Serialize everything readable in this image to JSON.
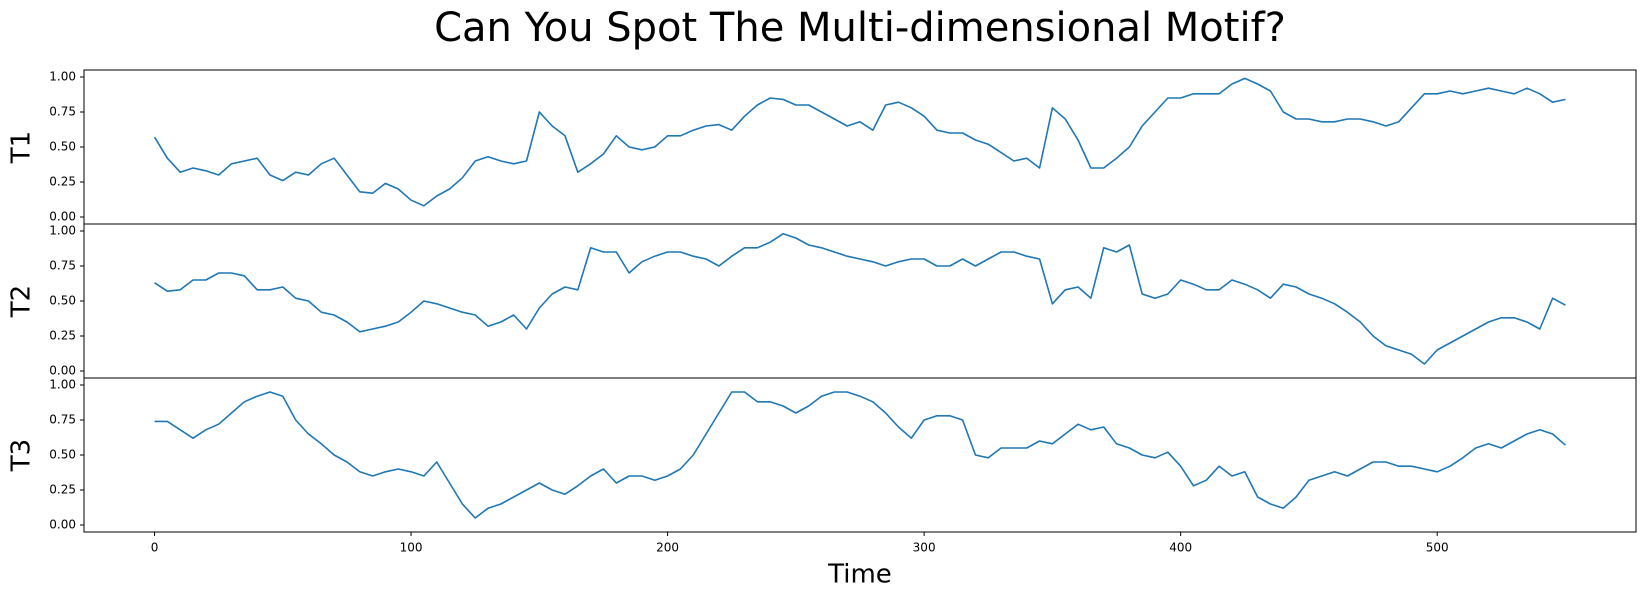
{
  "chart_data": {
    "type": "line",
    "title": "Can You Spot The Multi-dimensional Motif?",
    "xlabel": "Time",
    "color": "#1f77b4",
    "x": [
      0,
      5,
      10,
      15,
      20,
      25,
      30,
      35,
      40,
      45,
      50,
      55,
      60,
      65,
      70,
      75,
      80,
      85,
      90,
      95,
      100,
      105,
      110,
      115,
      120,
      125,
      130,
      135,
      140,
      145,
      150,
      155,
      160,
      165,
      170,
      175,
      180,
      185,
      190,
      195,
      200,
      205,
      210,
      215,
      220,
      225,
      230,
      235,
      240,
      245,
      250,
      255,
      260,
      265,
      270,
      275,
      280,
      285,
      290,
      295,
      300,
      305,
      310,
      315,
      320,
      325,
      330,
      335,
      340,
      345,
      350,
      355,
      360,
      365,
      370,
      375,
      380,
      385,
      390,
      395,
      400,
      405,
      410,
      415,
      420,
      425,
      430,
      435,
      440,
      445,
      450,
      455,
      460,
      465,
      470,
      475,
      480,
      485,
      490,
      495,
      500,
      505,
      510,
      515,
      520,
      525,
      530,
      535,
      540,
      545,
      550
    ],
    "xlim": [
      -27.5,
      577.5
    ],
    "xticks": [
      0,
      100,
      200,
      300,
      400,
      500
    ],
    "ylim": [
      -0.05,
      1.05
    ],
    "yticks": [
      {
        "value": 0,
        "label": "0.00"
      },
      {
        "value": 0.25,
        "label": "0.25"
      },
      {
        "value": 0.5,
        "label": "0.50"
      },
      {
        "value": 0.75,
        "label": "0.75"
      },
      {
        "value": 1,
        "label": "1.00"
      }
    ],
    "series": [
      {
        "name": "T1",
        "values": [
          0.57,
          0.42,
          0.32,
          0.35,
          0.33,
          0.3,
          0.38,
          0.4,
          0.42,
          0.3,
          0.26,
          0.32,
          0.3,
          0.38,
          0.42,
          0.3,
          0.18,
          0.17,
          0.24,
          0.2,
          0.12,
          0.08,
          0.15,
          0.2,
          0.28,
          0.4,
          0.43,
          0.4,
          0.38,
          0.4,
          0.75,
          0.65,
          0.58,
          0.32,
          0.38,
          0.45,
          0.58,
          0.5,
          0.48,
          0.5,
          0.58,
          0.58,
          0.62,
          0.65,
          0.66,
          0.62,
          0.72,
          0.8,
          0.85,
          0.84,
          0.8,
          0.8,
          0.75,
          0.7,
          0.65,
          0.68,
          0.62,
          0.8,
          0.82,
          0.78,
          0.72,
          0.62,
          0.6,
          0.6,
          0.55,
          0.52,
          0.46,
          0.4,
          0.42,
          0.35,
          0.78,
          0.7,
          0.55,
          0.35,
          0.35,
          0.42,
          0.5,
          0.65,
          0.75,
          0.85,
          0.85,
          0.88,
          0.88,
          0.88,
          0.95,
          0.99,
          0.95,
          0.9,
          0.75,
          0.7,
          0.7,
          0.68,
          0.68,
          0.7,
          0.7,
          0.68,
          0.65,
          0.68,
          0.78,
          0.88,
          0.88,
          0.9,
          0.88,
          0.9,
          0.92,
          0.9,
          0.88,
          0.92,
          0.88,
          0.82,
          0.84
        ]
      },
      {
        "name": "T2",
        "values": [
          0.63,
          0.57,
          0.58,
          0.65,
          0.65,
          0.7,
          0.7,
          0.68,
          0.58,
          0.58,
          0.6,
          0.52,
          0.5,
          0.42,
          0.4,
          0.35,
          0.28,
          0.3,
          0.32,
          0.35,
          0.42,
          0.5,
          0.48,
          0.45,
          0.42,
          0.4,
          0.32,
          0.35,
          0.4,
          0.3,
          0.45,
          0.55,
          0.6,
          0.58,
          0.88,
          0.85,
          0.85,
          0.7,
          0.78,
          0.82,
          0.85,
          0.85,
          0.82,
          0.8,
          0.75,
          0.82,
          0.88,
          0.88,
          0.92,
          0.98,
          0.95,
          0.9,
          0.88,
          0.85,
          0.82,
          0.8,
          0.78,
          0.75,
          0.78,
          0.8,
          0.8,
          0.75,
          0.75,
          0.8,
          0.75,
          0.8,
          0.85,
          0.85,
          0.82,
          0.8,
          0.48,
          0.58,
          0.6,
          0.52,
          0.88,
          0.85,
          0.9,
          0.55,
          0.52,
          0.55,
          0.65,
          0.62,
          0.58,
          0.58,
          0.65,
          0.62,
          0.58,
          0.52,
          0.62,
          0.6,
          0.55,
          0.52,
          0.48,
          0.42,
          0.35,
          0.25,
          0.18,
          0.15,
          0.12,
          0.05,
          0.15,
          0.2,
          0.25,
          0.3,
          0.35,
          0.38,
          0.38,
          0.35,
          0.3,
          0.52,
          0.47
        ]
      },
      {
        "name": "T3",
        "values": [
          0.74,
          0.74,
          0.68,
          0.62,
          0.68,
          0.72,
          0.8,
          0.88,
          0.92,
          0.95,
          0.92,
          0.75,
          0.65,
          0.58,
          0.5,
          0.45,
          0.38,
          0.35,
          0.38,
          0.4,
          0.38,
          0.35,
          0.45,
          0.3,
          0.15,
          0.05,
          0.12,
          0.15,
          0.2,
          0.25,
          0.3,
          0.25,
          0.22,
          0.28,
          0.35,
          0.4,
          0.3,
          0.35,
          0.35,
          0.32,
          0.35,
          0.4,
          0.5,
          0.65,
          0.8,
          0.95,
          0.95,
          0.88,
          0.88,
          0.85,
          0.8,
          0.85,
          0.92,
          0.95,
          0.95,
          0.92,
          0.88,
          0.8,
          0.7,
          0.62,
          0.75,
          0.78,
          0.78,
          0.75,
          0.5,
          0.48,
          0.55,
          0.55,
          0.55,
          0.6,
          0.58,
          0.65,
          0.72,
          0.68,
          0.7,
          0.58,
          0.55,
          0.5,
          0.48,
          0.52,
          0.42,
          0.28,
          0.32,
          0.42,
          0.35,
          0.38,
          0.2,
          0.15,
          0.12,
          0.2,
          0.32,
          0.35,
          0.38,
          0.35,
          0.4,
          0.45,
          0.45,
          0.42,
          0.42,
          0.4,
          0.38,
          0.42,
          0.48,
          0.55,
          0.58,
          0.55,
          0.6,
          0.65,
          0.68,
          0.65,
          0.57
        ]
      }
    ]
  }
}
